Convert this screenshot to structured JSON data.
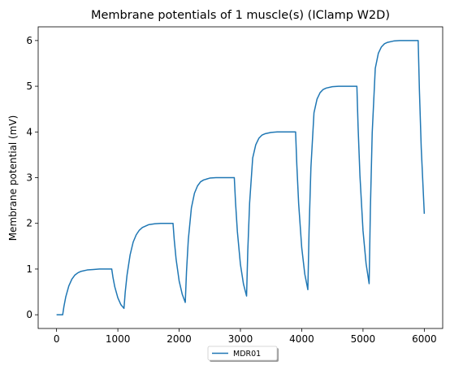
{
  "chart_data": {
    "type": "line",
    "title": "Membrane potentials of 1 muscle(s) (IClamp W2D)",
    "xlabel": "",
    "ylabel": "Membrane potential (mV)",
    "xlim": [
      -300,
      6300
    ],
    "ylim": [
      -0.3,
      6.3
    ],
    "xticks": [
      0,
      1000,
      2000,
      3000,
      4000,
      5000,
      6000
    ],
    "yticks": [
      0,
      1,
      2,
      3,
      4,
      5,
      6
    ],
    "grid": false,
    "legend_position": "below-center",
    "series": [
      {
        "name": "MDR01",
        "color": "#1f77b4",
        "x": [
          0,
          100,
          120,
          150,
          200,
          250,
          300,
          350,
          400,
          500,
          600,
          700,
          800,
          900,
          920,
          950,
          1000,
          1050,
          1100,
          1120,
          1150,
          1200,
          1250,
          1300,
          1350,
          1400,
          1500,
          1600,
          1700,
          1800,
          1900,
          1920,
          1950,
          2000,
          2050,
          2100,
          2120,
          2150,
          2200,
          2250,
          2300,
          2350,
          2400,
          2500,
          2600,
          2700,
          2800,
          2900,
          2920,
          2950,
          3000,
          3050,
          3100,
          3120,
          3150,
          3200,
          3250,
          3300,
          3350,
          3400,
          3500,
          3600,
          3700,
          3800,
          3900,
          3920,
          3950,
          4000,
          4050,
          4100,
          4120,
          4150,
          4200,
          4250,
          4300,
          4350,
          4400,
          4500,
          4600,
          4700,
          4800,
          4900,
          4920,
          4950,
          5000,
          5050,
          5100,
          5120,
          5150,
          5200,
          5250,
          5300,
          5350,
          5400,
          5500,
          5600,
          5700,
          5800,
          5900,
          5920,
          5950,
          6000
        ],
        "y": [
          0,
          0,
          0.18,
          0.39,
          0.63,
          0.78,
          0.87,
          0.92,
          0.95,
          0.98,
          0.99,
          1.0,
          1.0,
          1.0,
          0.82,
          0.61,
          0.37,
          0.22,
          0.14,
          0.49,
          0.87,
          1.31,
          1.59,
          1.75,
          1.85,
          1.91,
          1.97,
          1.99,
          2.0,
          2.0,
          2.0,
          1.64,
          1.22,
          0.74,
          0.45,
          0.27,
          0.94,
          1.65,
          2.34,
          2.66,
          2.82,
          2.91,
          2.95,
          2.99,
          3.0,
          3.0,
          3.0,
          3.0,
          2.46,
          1.82,
          1.1,
          0.67,
          0.41,
          1.4,
          2.45,
          3.43,
          3.72,
          3.86,
          3.93,
          3.96,
          3.99,
          4.0,
          4.0,
          4.0,
          4.0,
          3.28,
          2.43,
          1.47,
          0.89,
          0.55,
          1.85,
          3.22,
          4.42,
          4.72,
          4.86,
          4.93,
          4.96,
          4.99,
          5.0,
          5.0,
          5.0,
          5.0,
          4.1,
          3.04,
          1.84,
          1.12,
          0.68,
          2.3,
          3.98,
          5.39,
          5.72,
          5.86,
          5.93,
          5.96,
          5.99,
          6.0,
          6.0,
          6.0,
          6.0,
          4.92,
          3.65,
          2.21
        ]
      }
    ]
  }
}
